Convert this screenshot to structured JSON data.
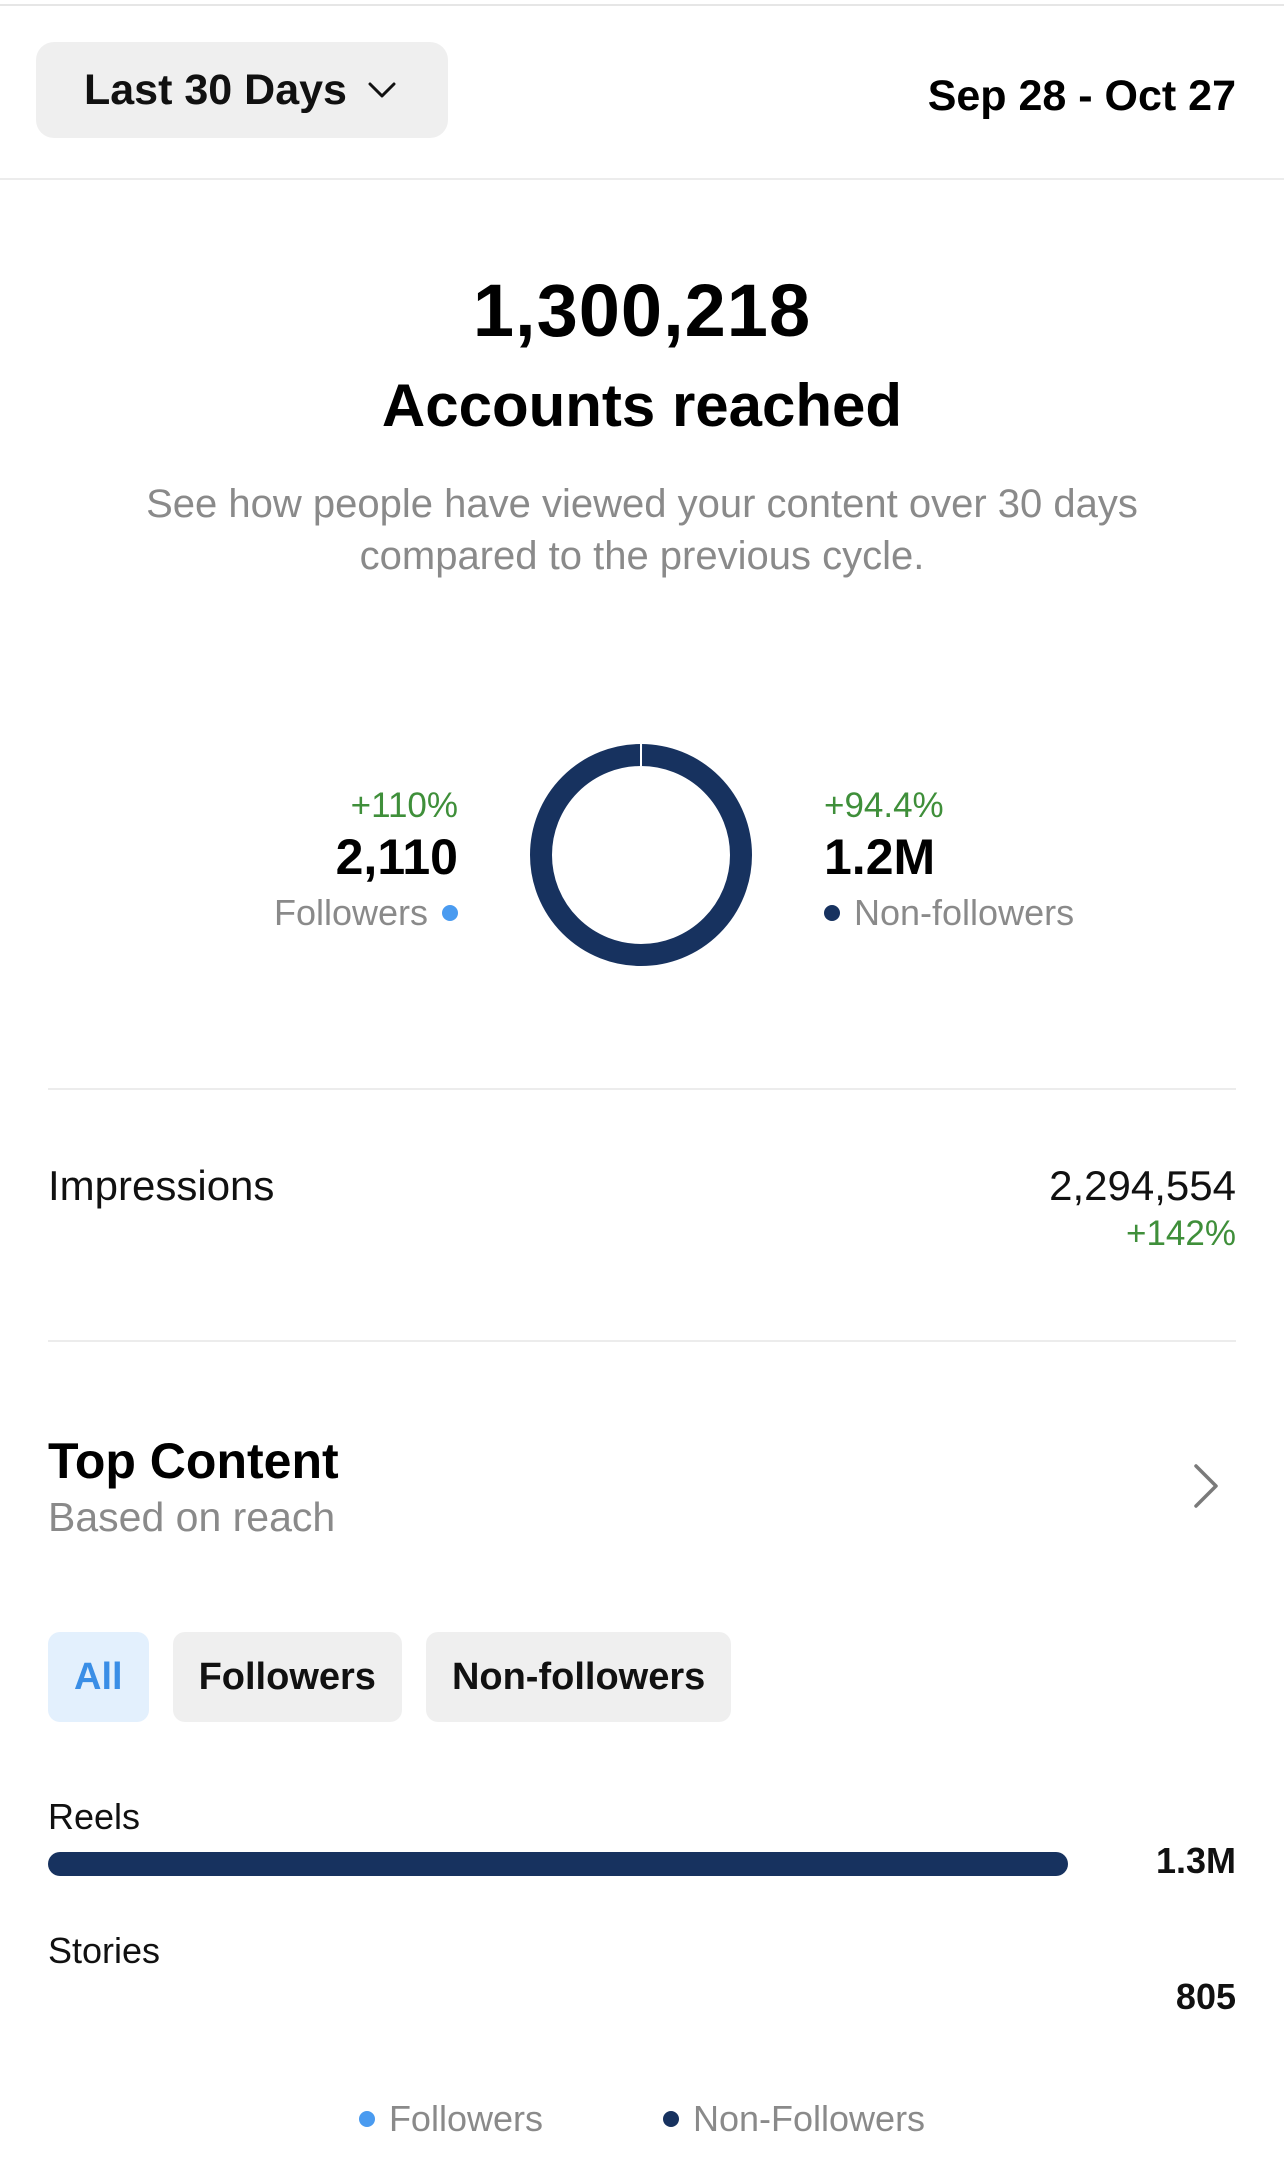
{
  "header": {
    "range_label": "Last 30 Days",
    "date_range": "Sep 28 - Oct 27"
  },
  "hero": {
    "value": "1,300,218",
    "label": "Accounts reached",
    "description": "See how people have viewed your content over 30 days compared to the previous cycle."
  },
  "audience": {
    "followers": {
      "change": "+110%",
      "value": "2,110",
      "label": "Followers"
    },
    "non_followers": {
      "change": "+94.4%",
      "value": "1.2M",
      "label": "Non-followers"
    },
    "followers_share": 0.0016
  },
  "impressions": {
    "label": "Impressions",
    "value": "2,294,554",
    "change": "+142%"
  },
  "top_content": {
    "title": "Top Content",
    "subtitle": "Based on reach",
    "filters": [
      "All",
      "Followers",
      "Non-followers"
    ],
    "active_filter": "All",
    "rows": [
      {
        "label": "Reels",
        "value": "1.3M",
        "fill": 1.0
      },
      {
        "label": "Stories",
        "value": "805",
        "fill": 0.0
      }
    ]
  },
  "legend": {
    "followers": "Followers",
    "non_followers": "Non-Followers"
  },
  "colors": {
    "followers": "#4a9bf0",
    "non_followers": "#17325f",
    "positive": "#3f8f3a",
    "muted": "#8a8a8a"
  }
}
